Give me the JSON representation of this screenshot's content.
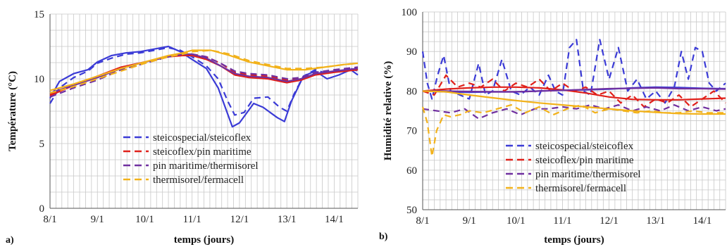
{
  "colors": {
    "blue": "#3b3bd6",
    "red": "#e0201a",
    "purple": "#7030a0",
    "yellow": "#f2b21b",
    "grid": "#c8c8c8"
  },
  "panels": [
    {
      "label": "a)"
    },
    {
      "label": "b)"
    }
  ],
  "chart_data": [
    {
      "type": "line",
      "xlabel": "temps (jours)",
      "ylabel": "Température (°C)",
      "xlim": [
        0,
        6.5
      ],
      "ylim": [
        0,
        15
      ],
      "x_ticks": [
        "8/1",
        "9/1",
        "10/1",
        "11/1",
        "12/1",
        "13/1",
        "14/1"
      ],
      "y_ticks": [
        "0",
        "5",
        "10",
        "15"
      ],
      "grid": true,
      "legend": "bottom-center",
      "legend_entries": [
        "steicospecial/steicoflex",
        "steicoflex/pin maritime",
        "pin maritime/thermisorel",
        "thermisorel/fermacell"
      ],
      "series": [
        {
          "name": "steicospecial/steicoflex",
          "color": "blue",
          "style": "solid",
          "x": [
            0,
            0.2,
            0.5,
            0.8,
            1.0,
            1.3,
            1.6,
            1.9,
            2.2,
            2.5,
            2.75,
            3.0,
            3.3,
            3.55,
            3.75,
            3.85,
            4.0,
            4.3,
            4.5,
            4.8,
            4.95,
            5.1,
            5.35,
            5.6,
            5.85,
            6.1,
            6.35,
            6.5
          ],
          "y": [
            8.5,
            9.8,
            10.4,
            10.7,
            11.3,
            11.8,
            12.0,
            12.1,
            12.3,
            12.5,
            12.1,
            11.5,
            10.8,
            9.3,
            7.3,
            6.3,
            6.6,
            8.1,
            7.8,
            7.0,
            6.7,
            8.3,
            10.2,
            10.6,
            10.0,
            10.3,
            10.7,
            10.3
          ]
        },
        {
          "name": "steicospecial/steicoflex",
          "color": "blue",
          "style": "dashed",
          "x": [
            0,
            0.2,
            0.5,
            0.8,
            1.0,
            1.3,
            1.6,
            1.9,
            2.2,
            2.5,
            2.75,
            3.0,
            3.3,
            3.55,
            3.75,
            3.9,
            4.1,
            4.3,
            4.6,
            4.85,
            5.0,
            5.15,
            5.35,
            5.6,
            5.85,
            6.1,
            6.35,
            6.5
          ],
          "y": [
            8.1,
            9.3,
            10.1,
            10.6,
            11.2,
            11.6,
            11.9,
            12.0,
            12.2,
            12.4,
            12.2,
            11.7,
            11.0,
            10.0,
            8.3,
            7.2,
            7.4,
            8.5,
            8.6,
            7.8,
            7.5,
            8.8,
            10.2,
            10.7,
            10.4,
            10.6,
            10.8,
            10.6
          ]
        },
        {
          "name": "steicoflex/pin maritime",
          "color": "red",
          "style": "solid",
          "x": [
            0,
            0.5,
            1.0,
            1.5,
            2.0,
            2.5,
            2.8,
            3.0,
            3.3,
            3.6,
            3.9,
            4.2,
            4.6,
            5.0,
            5.3,
            5.6,
            6.0,
            6.5
          ],
          "y": [
            8.7,
            9.5,
            10.2,
            10.9,
            11.3,
            11.7,
            11.8,
            11.8,
            11.5,
            11.0,
            10.3,
            10.1,
            10.0,
            9.7,
            9.9,
            10.3,
            10.5,
            10.7
          ]
        },
        {
          "name": "steicoflex/pin maritime",
          "color": "red",
          "style": "dashed",
          "x": [
            0,
            0.5,
            1.0,
            1.5,
            2.0,
            2.5,
            2.8,
            3.0,
            3.3,
            3.6,
            3.9,
            4.2,
            4.6,
            5.0,
            5.3,
            5.6,
            6.0,
            6.5
          ],
          "y": [
            8.8,
            9.5,
            10.1,
            10.8,
            11.3,
            11.7,
            11.9,
            11.9,
            11.7,
            11.2,
            10.5,
            10.3,
            10.2,
            9.9,
            10.0,
            10.4,
            10.6,
            10.8
          ]
        },
        {
          "name": "pin maritime/thermisorel",
          "color": "purple",
          "style": "solid",
          "x": [
            0,
            0.5,
            1.0,
            1.5,
            2.0,
            2.5,
            2.8,
            3.0,
            3.3,
            3.6,
            3.9,
            4.2,
            4.6,
            5.0,
            5.3,
            5.6,
            6.0,
            6.5
          ],
          "y": [
            8.9,
            9.5,
            10.1,
            10.8,
            11.3,
            11.7,
            11.9,
            11.9,
            11.6,
            11.0,
            10.4,
            10.2,
            10.1,
            9.8,
            10.0,
            10.4,
            10.6,
            10.8
          ]
        },
        {
          "name": "pin maritime/thermisorel",
          "color": "purple",
          "style": "dashed",
          "x": [
            0,
            0.5,
            1.0,
            1.5,
            2.0,
            2.5,
            2.8,
            3.0,
            3.3,
            3.6,
            3.9,
            4.2,
            4.6,
            5.0,
            5.3,
            5.6,
            6.0,
            6.5
          ],
          "y": [
            8.6,
            9.3,
            9.9,
            10.7,
            11.2,
            11.7,
            11.9,
            11.9,
            11.7,
            11.2,
            10.6,
            10.4,
            10.3,
            10.0,
            10.1,
            10.5,
            10.7,
            10.9
          ]
        },
        {
          "name": "thermisorel/fermacell",
          "color": "yellow",
          "style": "solid",
          "x": [
            0,
            0.5,
            1.0,
            1.5,
            2.0,
            2.5,
            2.8,
            3.0,
            3.4,
            3.8,
            4.2,
            4.6,
            5.0,
            5.4,
            5.8,
            6.2,
            6.5
          ],
          "y": [
            9.1,
            9.6,
            10.2,
            10.8,
            11.3,
            11.8,
            12.0,
            12.2,
            12.2,
            11.8,
            11.3,
            11.0,
            10.7,
            10.7,
            10.9,
            11.1,
            11.2
          ]
        },
        {
          "name": "thermisorel/fermacell",
          "color": "yellow",
          "style": "dashed",
          "x": [
            0,
            0.5,
            1.0,
            1.5,
            2.0,
            2.5,
            2.8,
            3.0,
            3.4,
            3.8,
            4.2,
            4.6,
            5.0,
            5.4,
            5.8,
            6.2,
            6.5
          ],
          "y": [
            8.9,
            9.4,
            10.0,
            10.6,
            11.2,
            11.7,
            11.9,
            12.1,
            12.2,
            11.9,
            11.4,
            11.1,
            10.8,
            10.8,
            10.9,
            11.1,
            11.2
          ]
        }
      ]
    },
    {
      "type": "line",
      "xlabel": "temps (jours)",
      "ylabel": "Humidité relative (%)",
      "xlim": [
        0,
        6.5
      ],
      "ylim": [
        50,
        100
      ],
      "x_ticks": [
        "8/1",
        "9/1",
        "10/1",
        "11/1",
        "12/1",
        "13/1",
        "14/1"
      ],
      "y_ticks": [
        "50",
        "60",
        "70",
        "80",
        "90",
        "100"
      ],
      "grid": true,
      "legend": "bottom-center",
      "legend_entries": [
        "steicospecial/steicoflex",
        "steicoflex/pin maritime",
        "pin maritime/thermisorel",
        "thermisorel/fermacell"
      ],
      "series": [
        {
          "name": "steicospecial/steicoflex",
          "color": "blue",
          "style": "solid",
          "x": [
            0,
            0.5,
            1.0,
            1.5,
            2.0,
            2.5,
            3.0,
            3.5,
            4.0,
            4.5,
            5.0,
            5.5,
            6.0,
            6.5
          ],
          "y": [
            80.0,
            79.8,
            79.7,
            79.8,
            79.8,
            80.0,
            80.2,
            80.3,
            80.5,
            80.8,
            81.0,
            80.9,
            80.7,
            80.6
          ]
        },
        {
          "name": "steicospecial/steicoflex",
          "color": "blue",
          "style": "dashed",
          "x": [
            0,
            0.1,
            0.2,
            0.32,
            0.45,
            0.6,
            0.8,
            1.0,
            1.2,
            1.35,
            1.5,
            1.7,
            1.9,
            2.1,
            2.3,
            2.5,
            2.7,
            2.85,
            3.0,
            3.15,
            3.3,
            3.45,
            3.6,
            3.8,
            4.0,
            4.2,
            4.4,
            4.6,
            4.8,
            5.0,
            5.2,
            5.4,
            5.55,
            5.7,
            5.85,
            6.0,
            6.15,
            6.3,
            6.5
          ],
          "y": [
            90,
            82,
            78,
            84,
            89,
            80,
            79,
            78,
            87,
            79,
            80,
            88,
            80,
            79,
            81,
            79,
            84,
            80,
            79,
            91,
            93,
            80,
            79,
            93,
            83,
            91,
            80,
            83,
            78,
            80,
            77,
            81,
            90,
            83,
            91,
            90,
            82,
            80,
            82
          ]
        },
        {
          "name": "steicoflex/pin maritime",
          "color": "red",
          "style": "solid",
          "x": [
            0,
            0.5,
            1.0,
            1.5,
            2.0,
            2.5,
            3.0,
            3.5,
            4.0,
            4.5,
            5.0,
            5.5,
            6.0,
            6.5
          ],
          "y": [
            80.0,
            80.5,
            80.8,
            81.0,
            81.0,
            80.8,
            80.3,
            79.5,
            78.5,
            77.9,
            77.8,
            77.8,
            78.0,
            78.2
          ]
        },
        {
          "name": "steicoflex/pin maritime",
          "color": "red",
          "style": "dashed",
          "x": [
            0,
            0.25,
            0.5,
            0.75,
            1.0,
            1.25,
            1.5,
            1.75,
            2.0,
            2.25,
            2.5,
            2.75,
            3.0,
            3.25,
            3.5,
            3.75,
            4.0,
            4.25,
            4.5,
            4.75,
            5.0,
            5.25,
            5.5,
            5.75,
            6.0,
            6.25,
            6.5
          ],
          "y": [
            80,
            79,
            84,
            81,
            82,
            81,
            83,
            80,
            82,
            81,
            83,
            80,
            82,
            80,
            81,
            79,
            80,
            77,
            79,
            76,
            78,
            77,
            79,
            76,
            78,
            80,
            77
          ]
        },
        {
          "name": "pin maritime/thermisorel",
          "color": "purple",
          "style": "solid",
          "x": [
            0,
            0.5,
            1.0,
            1.5,
            2.0,
            2.5,
            3.0,
            3.5,
            4.0,
            4.5,
            5.0,
            5.5,
            6.0,
            6.5
          ],
          "y": [
            80.0,
            80.0,
            79.9,
            79.8,
            79.8,
            80.0,
            80.2,
            80.4,
            80.6,
            80.7,
            80.8,
            80.6,
            80.6,
            80.5
          ]
        },
        {
          "name": "pin maritime/thermisorel",
          "color": "purple",
          "style": "dashed",
          "x": [
            0,
            0.3,
            0.6,
            0.9,
            1.2,
            1.5,
            1.8,
            2.1,
            2.4,
            2.7,
            3.0,
            3.3,
            3.6,
            3.9,
            4.2,
            4.5,
            4.8,
            5.1,
            5.4,
            5.7,
            6.0,
            6.3,
            6.5
          ],
          "y": [
            75.5,
            75.0,
            74.5,
            75.5,
            73.0,
            74.5,
            75.5,
            74.0,
            75.5,
            75.5,
            76.0,
            75.5,
            76.5,
            75.5,
            76.5,
            75.0,
            76.0,
            75.0,
            76.5,
            75.0,
            76.0,
            75.0,
            75.5
          ]
        },
        {
          "name": "thermisorel/fermacell",
          "color": "yellow",
          "style": "solid",
          "x": [
            0,
            0.5,
            1.0,
            1.5,
            2.0,
            2.5,
            3.0,
            3.5,
            4.0,
            4.5,
            5.0,
            5.5,
            6.0,
            6.5
          ],
          "y": [
            80.0,
            79.8,
            79.0,
            78.3,
            77.6,
            77.0,
            76.5,
            76.0,
            75.5,
            75.0,
            74.6,
            74.3,
            74.2,
            74.2
          ]
        },
        {
          "name": "thermisorel/fermacell",
          "color": "yellow",
          "style": "dashed",
          "x": [
            0,
            0.1,
            0.2,
            0.3,
            0.45,
            0.6,
            0.8,
            1.0,
            1.3,
            1.6,
            1.9,
            2.2,
            2.5,
            2.8,
            3.1,
            3.4,
            3.7,
            4.0,
            4.3,
            4.6,
            4.9,
            5.2,
            5.5,
            5.8,
            6.1,
            6.5
          ],
          "y": [
            76,
            72,
            63.5,
            70,
            74,
            73.5,
            74,
            75,
            74.5,
            75.5,
            76.5,
            74.5,
            76,
            74,
            75.5,
            76.5,
            74.5,
            75.5,
            75,
            74.5,
            75,
            74.5,
            74.5,
            75,
            74.5,
            74.5
          ]
        }
      ]
    }
  ]
}
